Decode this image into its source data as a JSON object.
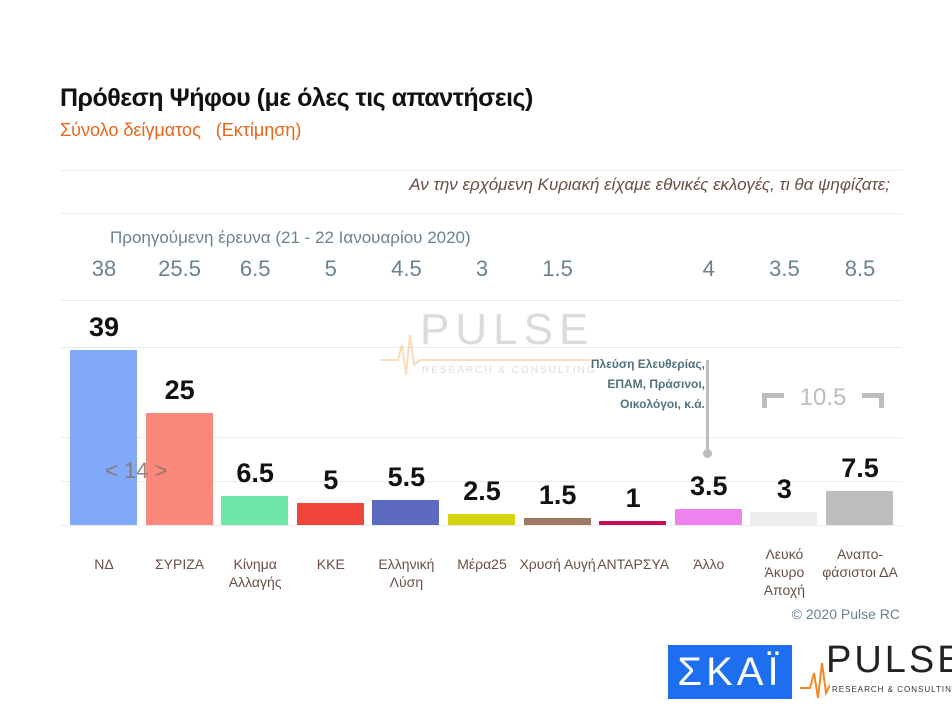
{
  "title": "Πρόθεση Ψήφου (με όλες τις απαντήσεις)",
  "subtitle": "Σύνολο δείγματος   (Εκτίμηση)",
  "question": "Αν την ερχόμενη Κυριακή είχαμε εθνικές εκλογές, τι θα ψηφίζατε;",
  "previous_label": "Προηγούμενη έρευνα  (21 - 22 Ιανουαρίου  2020)",
  "watermark": {
    "name": "PULSE",
    "tagline": "RESEARCH & CONSULTING"
  },
  "chart_data": {
    "type": "bar",
    "categories": [
      "ΝΔ",
      "ΣΥΡΙΖΑ",
      "Κίνημα Αλλαγής",
      "ΚΚΕ",
      "Ελληνική Λύση",
      "Μέρα25",
      "Χρυσή Αυγή",
      "ΑΝΤΑΡΣΥΑ",
      "Άλλο",
      "Λευκό Άκυρο Αποχή",
      "Αναπο- φάσιστοι ΔΑ"
    ],
    "values": [
      39,
      25,
      6.5,
      5,
      5.5,
      2.5,
      1.5,
      1,
      3.5,
      3,
      7.5
    ],
    "value_labels": [
      "39",
      "25",
      "6.5",
      "5",
      "5.5",
      "2.5",
      "1.5",
      "1",
      "3.5",
      "3",
      "7.5"
    ],
    "previous_values": [
      "38",
      "25.5",
      "6.5",
      "5",
      "4.5",
      "3",
      "1.5",
      "",
      "4",
      "3.5",
      "8.5"
    ],
    "colors": [
      "#80aaf7",
      "#f9877a",
      "#6ee6a8",
      "#f0453a",
      "#5c6bc0",
      "#d4d40a",
      "#a07866",
      "#c8105a",
      "#ee82ee",
      "#ececec",
      "#bdbdbd"
    ],
    "bracket_left": "< 14 >",
    "bracket_right": "10.5",
    "other_note": "Πλεύση Ελευθερίας, ΕΠΑΜ, Πράσινοι, Οικολόγοι, κ.ά."
  },
  "copyright": "© 2020 Pulse RC",
  "logos": {
    "skai": "ΣΚΑΪ",
    "pulse": "PULSE",
    "pulse_tagline": "RESEARCH & CONSULTING"
  }
}
